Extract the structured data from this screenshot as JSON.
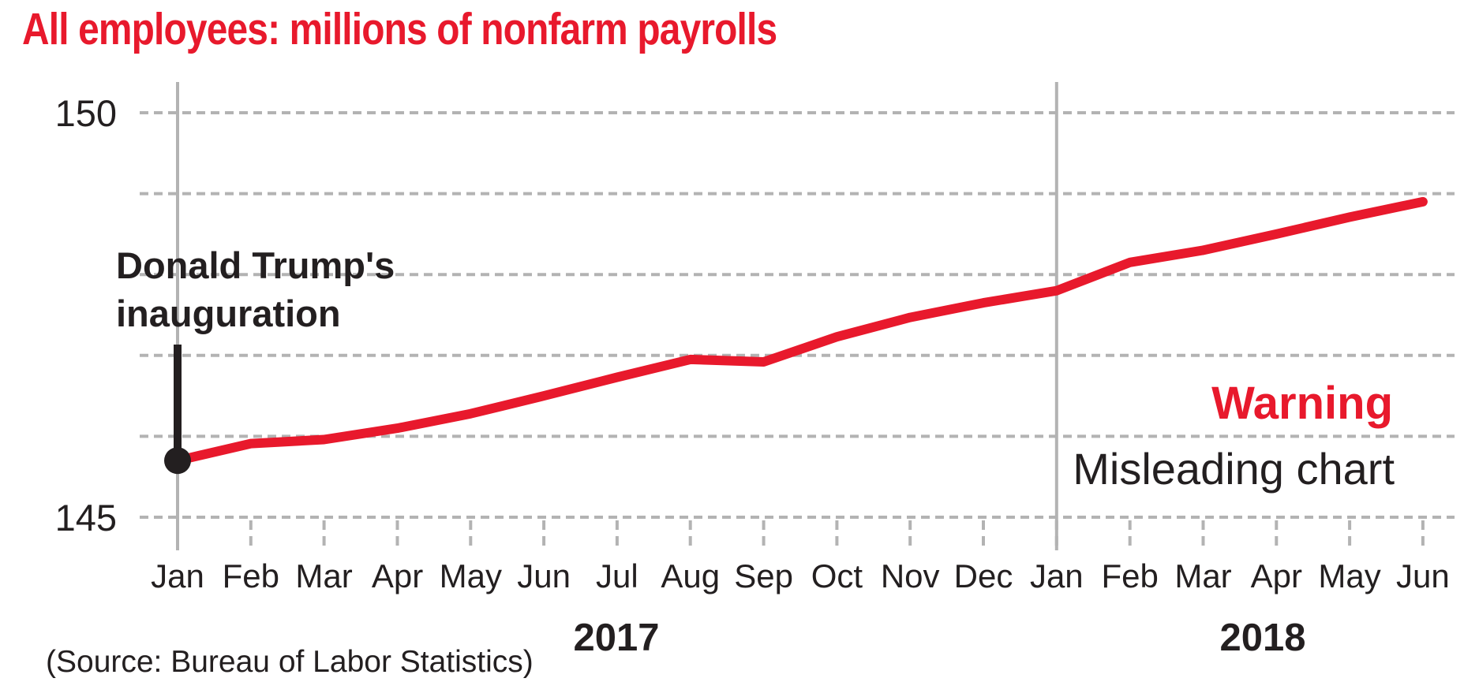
{
  "title": "All employees: millions of nonfarm payrolls",
  "annotation": {
    "line1": "Donald Trump's",
    "line2": "inauguration"
  },
  "warning_label": "Warning",
  "warning_sublabel": "Misleading chart",
  "source_note": "(Source: Bureau of Labor Statistics)",
  "y_axis": {
    "top": "150",
    "bottom": "145"
  },
  "years": {
    "y2017": "2017",
    "y2018": "2018"
  },
  "colors": {
    "accent_red": "#e8192c",
    "ink": "#231f20",
    "grid_gray": "#b3b3b3"
  },
  "chart_data": {
    "type": "line",
    "title": "All employees: millions of nonfarm payrolls",
    "x": [
      "Jan 2017",
      "Feb 2017",
      "Mar 2017",
      "Apr 2017",
      "May 2017",
      "Jun 2017",
      "Jul 2017",
      "Aug 2017",
      "Sep 2017",
      "Oct 2017",
      "Nov 2017",
      "Dec 2017",
      "Jan 2018",
      "Feb 2018",
      "Mar 2018",
      "Apr 2018",
      "May 2018",
      "Jun 2018"
    ],
    "month_labels": [
      "Jan",
      "Feb",
      "Mar",
      "Apr",
      "May",
      "Jun",
      "Jul",
      "Aug",
      "Sep",
      "Oct",
      "Nov",
      "Dec",
      "Jan",
      "Feb",
      "Mar",
      "Apr",
      "May",
      "Jun"
    ],
    "values": [
      145.7,
      145.91,
      145.96,
      146.1,
      146.28,
      146.5,
      146.73,
      146.95,
      146.92,
      147.23,
      147.47,
      147.65,
      147.8,
      148.15,
      148.3,
      148.5,
      148.71,
      148.9
    ],
    "unit": "millions",
    "ylim": [
      145,
      150
    ],
    "yticks_labeled": [
      145,
      150
    ],
    "gridline_values": [
      145,
      146,
      147,
      148,
      149,
      150
    ],
    "grid_style": "dashed horizontal",
    "year_divider_indices": [
      0,
      12
    ],
    "annotation_text": "Donald Trump's inauguration",
    "annotation_point_index": 0,
    "line_color": "#e8192c"
  }
}
